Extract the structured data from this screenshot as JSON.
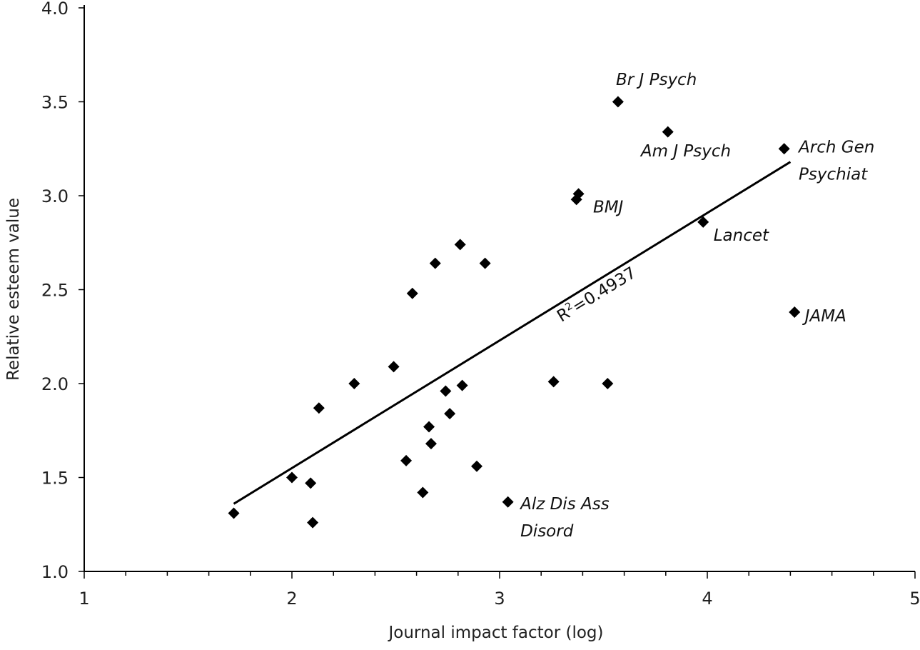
{
  "chart_data": {
    "type": "scatter",
    "title": "",
    "xlabel": "Journal impact factor (log)",
    "ylabel": "Relative esteem value",
    "xlim": [
      1,
      5
    ],
    "ylim": [
      1.0,
      4.0
    ],
    "x_major_ticks": [
      1,
      2,
      3,
      4,
      5
    ],
    "x_tick_labels": [
      "1",
      "2",
      "3",
      "4",
      "5"
    ],
    "x_minor_step": 0.2,
    "y_ticks": [
      1.0,
      1.5,
      2.0,
      2.5,
      3.0,
      3.5,
      4.0
    ],
    "y_tick_labels": [
      "1.0",
      "1.5",
      "2.0",
      "2.5",
      "3.0",
      "3.5",
      "4.0"
    ],
    "grid": false,
    "points": [
      {
        "x": 1.72,
        "y": 1.31,
        "label": ""
      },
      {
        "x": 2.0,
        "y": 1.5,
        "label": ""
      },
      {
        "x": 2.09,
        "y": 1.47,
        "label": ""
      },
      {
        "x": 2.1,
        "y": 1.26,
        "label": ""
      },
      {
        "x": 2.13,
        "y": 1.87,
        "label": ""
      },
      {
        "x": 2.3,
        "y": 2.0,
        "label": ""
      },
      {
        "x": 2.49,
        "y": 2.09,
        "label": ""
      },
      {
        "x": 2.55,
        "y": 1.59,
        "label": ""
      },
      {
        "x": 2.58,
        "y": 2.48,
        "label": ""
      },
      {
        "x": 2.63,
        "y": 1.42,
        "label": ""
      },
      {
        "x": 2.66,
        "y": 1.77,
        "label": ""
      },
      {
        "x": 2.67,
        "y": 1.68,
        "label": ""
      },
      {
        "x": 2.69,
        "y": 2.64,
        "label": ""
      },
      {
        "x": 2.74,
        "y": 1.96,
        "label": ""
      },
      {
        "x": 2.76,
        "y": 1.84,
        "label": ""
      },
      {
        "x": 2.81,
        "y": 2.74,
        "label": ""
      },
      {
        "x": 2.82,
        "y": 1.99,
        "label": ""
      },
      {
        "x": 2.89,
        "y": 1.56,
        "label": ""
      },
      {
        "x": 2.93,
        "y": 2.64,
        "label": ""
      },
      {
        "x": 3.04,
        "y": 1.37,
        "label": "Alz Dis Ass Disord"
      },
      {
        "x": 3.26,
        "y": 2.01,
        "label": ""
      },
      {
        "x": 3.37,
        "y": 2.98,
        "label": ""
      },
      {
        "x": 3.38,
        "y": 3.01,
        "label": "BMJ"
      },
      {
        "x": 3.52,
        "y": 2.0,
        "label": ""
      },
      {
        "x": 3.57,
        "y": 3.5,
        "label": "Br J Psych"
      },
      {
        "x": 3.81,
        "y": 3.34,
        "label": "Am J Psych"
      },
      {
        "x": 3.98,
        "y": 2.86,
        "label": "Lancet"
      },
      {
        "x": 4.37,
        "y": 3.25,
        "label": "Arch Gen Psychiat"
      },
      {
        "x": 4.42,
        "y": 2.38,
        "label": "JAMA"
      }
    ],
    "labels": [
      {
        "name": "br-j-psych",
        "lines": [
          "Br J Psych"
        ],
        "x": 3.56,
        "y": 3.59
      },
      {
        "name": "am-j-psych",
        "lines": [
          "Am J Psych"
        ],
        "x": 3.68,
        "y": 3.21
      },
      {
        "name": "arch-gen-psychiat",
        "lines": [
          "Arch Gen",
          "Psychiat"
        ],
        "x": 4.44,
        "y": 3.23
      },
      {
        "name": "bmj",
        "lines": [
          "BMJ"
        ],
        "x": 3.45,
        "y": 2.91
      },
      {
        "name": "lancet",
        "lines": [
          "Lancet"
        ],
        "x": 4.03,
        "y": 2.76
      },
      {
        "name": "jama",
        "lines": [
          "JAMA"
        ],
        "x": 4.47,
        "y": 2.33
      },
      {
        "name": "alz-dis-ass-disord",
        "lines": [
          "Alz Dis Ass",
          "Disord"
        ],
        "x": 3.1,
        "y": 1.33
      }
    ],
    "trendline": {
      "x1": 1.72,
      "y1": 1.36,
      "x2": 4.4,
      "y2": 3.18
    },
    "r_squared_label": {
      "prefix": "R",
      "sup": "2",
      "value": "=0.4937"
    }
  }
}
